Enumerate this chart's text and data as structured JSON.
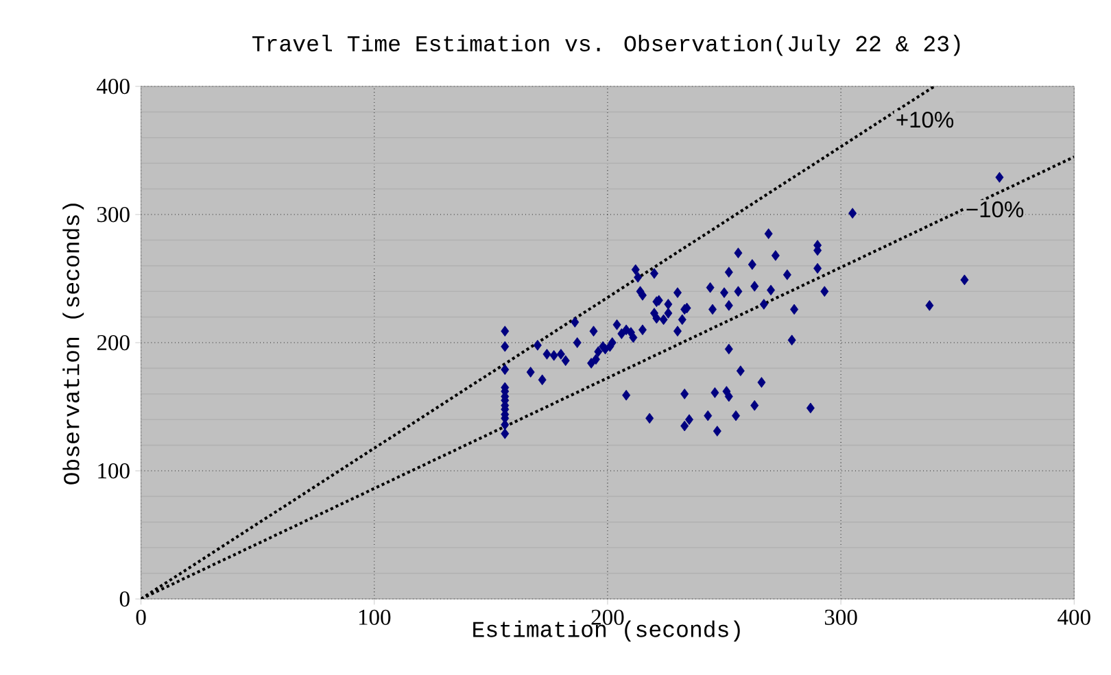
{
  "chart_data": {
    "type": "scatter",
    "title": "Travel Time Estimation vs. Observation(July 22 & 23)",
    "xlabel": "Estimation (seconds)",
    "ylabel": "Observation (seconds)",
    "series": [
      {
        "marker": "diamond",
        "color": "#000080",
        "x": [
          156,
          156,
          156,
          156,
          156,
          156,
          156,
          156,
          156,
          156,
          156,
          156,
          156,
          167,
          170,
          172,
          174,
          177,
          180,
          182,
          186,
          187,
          194,
          193,
          195,
          196,
          198,
          199,
          201,
          202,
          204,
          206,
          208,
          210,
          211,
          208,
          212,
          213,
          214,
          215,
          215,
          220,
          220,
          221,
          221,
          222,
          224,
          226,
          226,
          218,
          230,
          230,
          232,
          233,
          234,
          233,
          233,
          235,
          243,
          244,
          245,
          246,
          247,
          250,
          251,
          252,
          252,
          252,
          252,
          255,
          256,
          256,
          257,
          262,
          263,
          263,
          266,
          267,
          269,
          270,
          272,
          277,
          279,
          280,
          287,
          290,
          290,
          290,
          293,
          305,
          338,
          353,
          368
        ],
        "values": [
          209,
          197,
          179,
          165,
          162,
          158,
          155,
          151,
          148,
          144,
          141,
          136,
          129,
          177,
          198,
          171,
          191,
          190,
          191,
          186,
          216,
          200,
          209,
          184,
          187,
          193,
          197,
          195,
          197,
          200,
          214,
          207,
          210,
          208,
          204,
          159,
          257,
          251,
          240,
          237,
          210,
          254,
          223,
          219,
          232,
          233,
          218,
          230,
          223,
          141,
          209,
          239,
          218,
          226,
          227,
          160,
          135,
          140,
          143,
          243,
          226,
          161,
          131,
          239,
          162,
          255,
          229,
          195,
          158,
          143,
          270,
          240,
          178,
          261,
          244,
          151,
          169,
          230,
          285,
          241,
          268,
          253,
          202,
          226,
          149,
          276,
          272,
          258,
          240,
          301,
          229,
          249,
          329
        ]
      },
      {
        "type": "line",
        "line_style": "dotted",
        "color": "#000000",
        "x": [
          0,
          340
        ],
        "values": [
          0,
          400
        ]
      },
      {
        "type": "line",
        "line_style": "dotted",
        "color": "#000000",
        "x": [
          0,
          400
        ],
        "values": [
          0,
          345
        ]
      }
    ],
    "annotations": [
      "+10%",
      "−10%"
    ],
    "xlim": [
      0,
      400
    ],
    "ylim": [
      0,
      400
    ],
    "xticks": [
      0,
      100,
      200,
      300,
      400
    ],
    "yticks": [
      0,
      100,
      200,
      300,
      400
    ],
    "grid": true
  }
}
